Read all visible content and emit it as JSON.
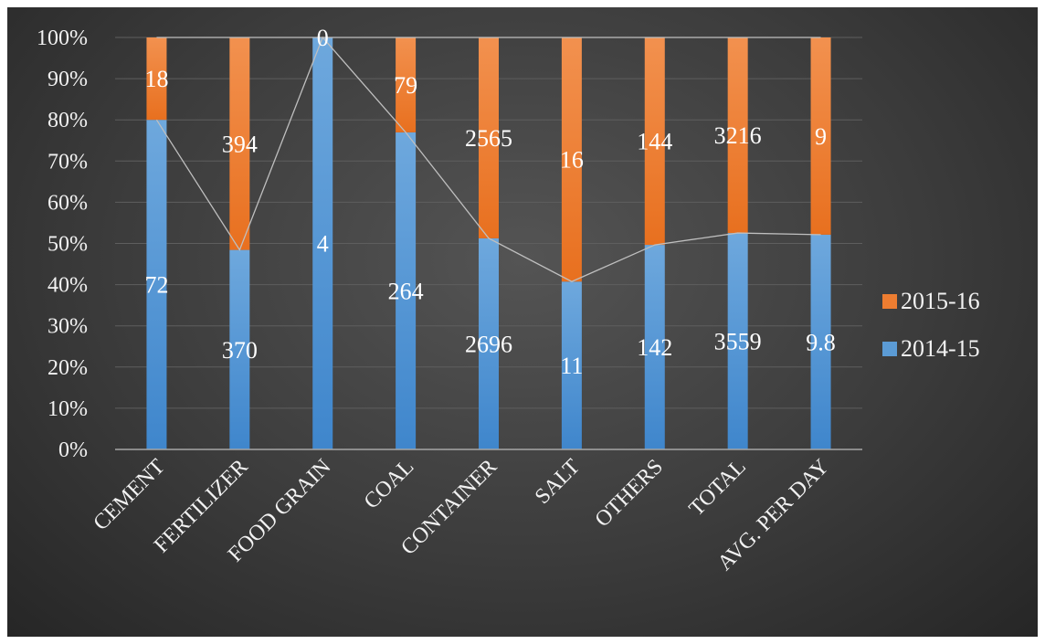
{
  "chart_data": {
    "type": "bar",
    "stacked": "percent",
    "categories": [
      "CEMENT",
      "FERTILIZER",
      "FOOD GRAIN",
      "COAL",
      "CONTAINER",
      "SALT",
      "OTHERS",
      "TOTAL",
      "AVG. PER DAY"
    ],
    "series": [
      {
        "name": "2014-15",
        "values": [
          72,
          370,
          4,
          264,
          2696,
          11,
          142,
          3559,
          9.8
        ],
        "labels": [
          "72",
          "370",
          "4",
          "264",
          "2696",
          "11",
          "142",
          "3559",
          "9.8"
        ],
        "color": "#5b9bd5"
      },
      {
        "name": "2015-16",
        "values": [
          18,
          394,
          0,
          79,
          2565,
          16,
          144,
          3216,
          9
        ],
        "labels": [
          "18",
          "394",
          "0",
          "79",
          "2565",
          "16",
          "144",
          "3216",
          "9"
        ],
        "color": "#ed7d31"
      }
    ],
    "ylim": [
      0,
      100
    ],
    "y_ticks": [
      "0%",
      "10%",
      "20%",
      "30%",
      "40%",
      "50%",
      "60%",
      "70%",
      "80%",
      "90%",
      "100%"
    ],
    "series_line": true,
    "grid": true,
    "legend_position": "right"
  }
}
